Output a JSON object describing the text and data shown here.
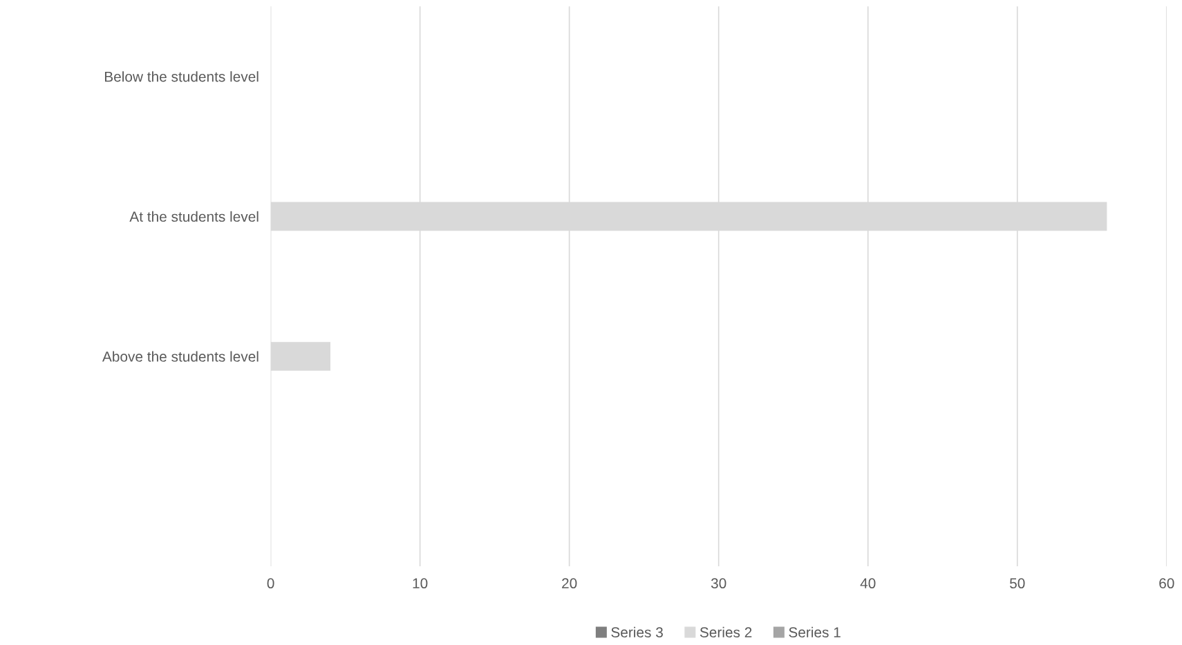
{
  "chart_data": {
    "type": "bar",
    "orientation": "horizontal",
    "categories": [
      "Below the students level",
      "At the students level",
      "Above the students level",
      null
    ],
    "series": [
      {
        "name": "Series 1",
        "color": "#a5a5a5",
        "values": [
          null,
          null,
          null,
          null
        ]
      },
      {
        "name": "Series 2",
        "color": "#d9d9d9",
        "values": [
          null,
          56,
          4,
          null
        ]
      },
      {
        "name": "Series 3",
        "color": "#7f7f7f",
        "values": [
          null,
          null,
          null,
          null
        ]
      }
    ],
    "xlim": [
      0,
      60
    ],
    "xticks": [
      0,
      10,
      20,
      30,
      40,
      50,
      60
    ],
    "grid": "x",
    "legend": "bottom"
  }
}
